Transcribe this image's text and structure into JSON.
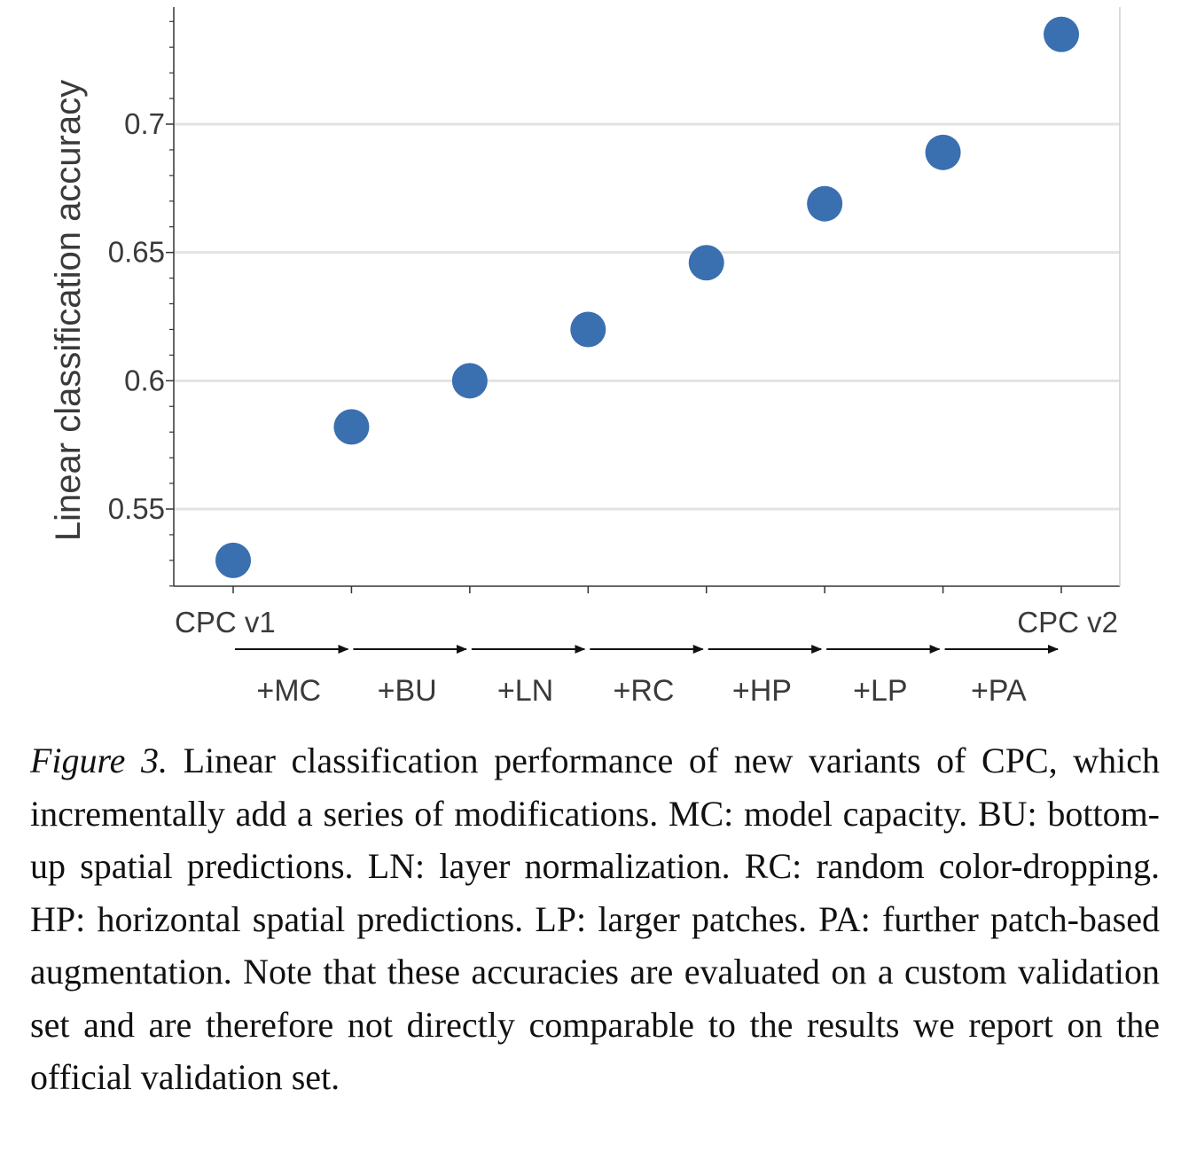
{
  "chart_data": {
    "type": "scatter",
    "ylabel": "Linear classification accuracy",
    "xlabel": "",
    "ylim": [
      0.52,
      0.745
    ],
    "yticks": [
      0.55,
      0.6,
      0.65,
      0.7
    ],
    "ytick_labels": [
      "0.55",
      "0.6",
      "0.65",
      "0.7"
    ],
    "grid": "horizontal",
    "x": [
      0,
      1,
      2,
      3,
      4,
      5,
      6,
      7
    ],
    "values": [
      0.53,
      0.582,
      0.6,
      0.62,
      0.646,
      0.669,
      0.689,
      0.735
    ],
    "point_color": "#3a6fb0",
    "start_label": "CPC v1",
    "end_label": "CPC v2",
    "step_labels": [
      "+MC",
      "+BU",
      "+LN",
      "+RC",
      "+HP",
      "+LP",
      "+PA"
    ]
  },
  "caption": {
    "label": "Figure 3.",
    "text": "Linear classification performance of new variants of CPC, which incrementally add a series of modifications. MC: model capacity. BU: bottom-up spatial predictions. LN: layer normalization. RC: random color-dropping. HP: horizontal spatial predictions. LP: larger patches. PA: further patch-based augmentation. Note that these accuracies are evaluated on a custom validation set and are therefore not directly comparable to the results we report on the official validation set."
  }
}
